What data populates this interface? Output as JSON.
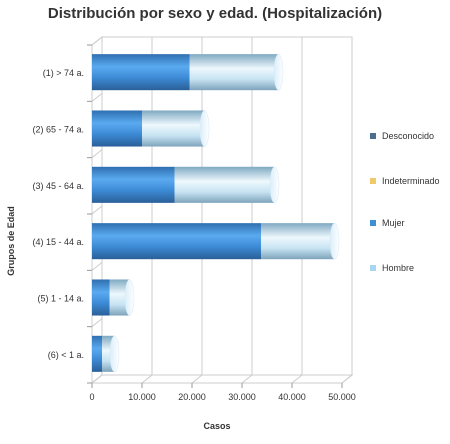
{
  "title": "Distribución por sexo y edad. (Hospitalización)",
  "chart_data": {
    "type": "bar",
    "orientation": "horizontal",
    "stacked": true,
    "title": "Distribución por sexo y edad. (Hospitalización)",
    "xlabel": "Casos",
    "ylabel": "Grupos de Edad",
    "categories": [
      "(1) > 74 a.",
      "(2) 65 - 74 a.",
      "(3) 45 - 64 a.",
      "(4) 15 - 44 a.",
      "(5) 1 - 14 a.",
      "(6) < 1 a."
    ],
    "xlim": [
      0,
      50000
    ],
    "xticks": [
      "0",
      "10.000",
      "20.000",
      "30.000",
      "40.000",
      "50.000"
    ],
    "grid": true,
    "legend_position": "right",
    "series": [
      {
        "name": "Desconocido",
        "color": "#4a6f8f",
        "values": [
          0,
          0,
          0,
          0,
          0,
          0
        ]
      },
      {
        "name": "Indeterminado",
        "color": "#f0c96a",
        "values": [
          0,
          0,
          0,
          0,
          0,
          0
        ]
      },
      {
        "name": "Mujer",
        "color": "#3f8fd3",
        "values": [
          19500,
          10000,
          16500,
          33800,
          3500,
          2000
        ]
      },
      {
        "name": "Hombre",
        "color": "#a9d6f0",
        "values": [
          17800,
          12500,
          20000,
          14700,
          4000,
          2500
        ]
      }
    ]
  }
}
